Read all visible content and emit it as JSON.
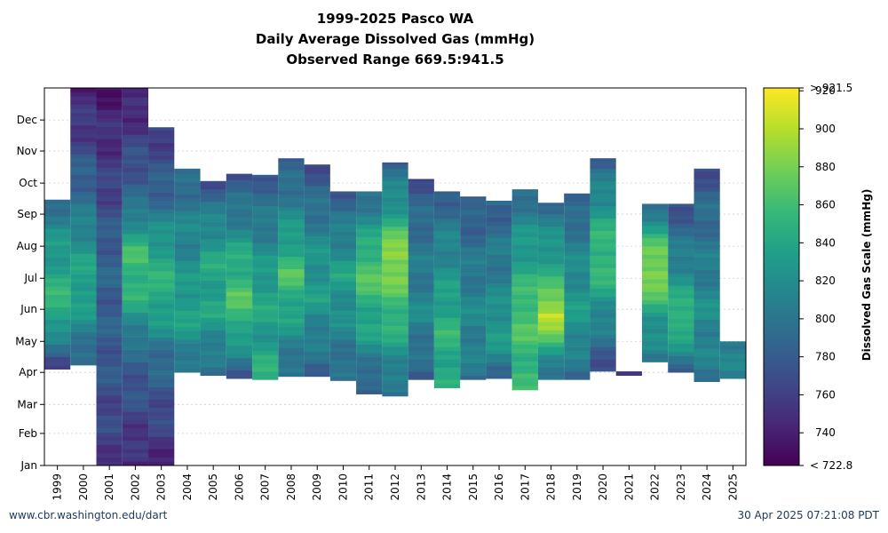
{
  "chart_data": {
    "type": "heatmap",
    "title_lines": [
      "1999-2025 Pasco WA",
      "Daily Average Dissolved Gas (mmHg)",
      "Observed Range 669.5:941.5"
    ],
    "y_ticks": [
      "Jan",
      "Feb",
      "Mar",
      "Apr",
      "May",
      "Jun",
      "Jul",
      "Aug",
      "Sep",
      "Oct",
      "Nov",
      "Dec"
    ],
    "ylim_day_of_year": [
      1,
      366
    ],
    "years": [
      1999,
      2000,
      2001,
      2002,
      2003,
      2004,
      2005,
      2006,
      2007,
      2008,
      2009,
      2010,
      2011,
      2012,
      2013,
      2014,
      2015,
      2016,
      2017,
      2018,
      2019,
      2020,
      2021,
      2022,
      2023,
      2024,
      2025
    ],
    "series": [
      {
        "year": 1999,
        "start": "2025-04-04",
        "end": "2025-09-14",
        "profile": [
          [
            0,
            765
          ],
          [
            0.35,
            855
          ],
          [
            0.55,
            840
          ],
          [
            0.8,
            820
          ],
          [
            1,
            790
          ]
        ]
      },
      {
        "year": 2000,
        "start": "2025-04-08",
        "end": "2025-12-31",
        "profile": [
          [
            0,
            785
          ],
          [
            0.25,
            840
          ],
          [
            0.4,
            830
          ],
          [
            0.55,
            800
          ],
          [
            0.7,
            780
          ],
          [
            0.85,
            755
          ],
          [
            1,
            745
          ]
        ]
      },
      {
        "year": 2001,
        "start": "2025-01-01",
        "end": "2025-12-31",
        "profile": [
          [
            0,
            755
          ],
          [
            0.3,
            780
          ],
          [
            0.55,
            785
          ],
          [
            0.75,
            760
          ],
          [
            1,
            735
          ]
        ]
      },
      {
        "year": 2002,
        "start": "2025-01-01",
        "end": "2025-12-31",
        "profile": [
          [
            0,
            745
          ],
          [
            0.3,
            790
          ],
          [
            0.45,
            850
          ],
          [
            0.55,
            860
          ],
          [
            0.7,
            790
          ],
          [
            1,
            735
          ]
        ]
      },
      {
        "year": 2003,
        "start": "2025-01-01",
        "end": "2025-11-23",
        "profile": [
          [
            0,
            745
          ],
          [
            0.3,
            790
          ],
          [
            0.5,
            850
          ],
          [
            0.62,
            840
          ],
          [
            0.8,
            785
          ],
          [
            1,
            755
          ]
        ]
      },
      {
        "year": 2004,
        "start": "2025-04-01",
        "end": "2025-10-14",
        "profile": [
          [
            0,
            800
          ],
          [
            0.3,
            840
          ],
          [
            0.5,
            820
          ],
          [
            0.75,
            810
          ],
          [
            1,
            785
          ]
        ]
      },
      {
        "year": 2005,
        "start": "2025-03-29",
        "end": "2025-10-02",
        "profile": [
          [
            0,
            790
          ],
          [
            0.3,
            835
          ],
          [
            0.55,
            840
          ],
          [
            0.75,
            820
          ],
          [
            1,
            770
          ]
        ]
      },
      {
        "year": 2006,
        "start": "2025-03-26",
        "end": "2025-10-09",
        "profile": [
          [
            0,
            780
          ],
          [
            0.25,
            850
          ],
          [
            0.4,
            865
          ],
          [
            0.6,
            840
          ],
          [
            0.8,
            800
          ],
          [
            1,
            775
          ]
        ]
      },
      {
        "year": 2007,
        "start": "2025-03-25",
        "end": "2025-10-08",
        "profile": [
          [
            0,
            850
          ],
          [
            0.2,
            830
          ],
          [
            0.4,
            840
          ],
          [
            0.6,
            820
          ],
          [
            1,
            780
          ]
        ]
      },
      {
        "year": 2008,
        "start": "2025-03-28",
        "end": "2025-10-24",
        "profile": [
          [
            0,
            790
          ],
          [
            0.3,
            840
          ],
          [
            0.45,
            865
          ],
          [
            0.65,
            830
          ],
          [
            1,
            775
          ]
        ]
      },
      {
        "year": 2009,
        "start": "2025-03-28",
        "end": "2025-10-18",
        "profile": [
          [
            0,
            785
          ],
          [
            0.35,
            830
          ],
          [
            0.55,
            825
          ],
          [
            0.75,
            800
          ],
          [
            1,
            770
          ]
        ]
      },
      {
        "year": 2010,
        "start": "2025-03-24",
        "end": "2025-09-22",
        "profile": [
          [
            0,
            790
          ],
          [
            0.3,
            815
          ],
          [
            0.55,
            835
          ],
          [
            0.75,
            810
          ],
          [
            1,
            780
          ]
        ]
      },
      {
        "year": 2011,
        "start": "2025-03-11",
        "end": "2025-09-22",
        "profile": [
          [
            0,
            775
          ],
          [
            0.3,
            835
          ],
          [
            0.45,
            850
          ],
          [
            0.6,
            870
          ],
          [
            0.8,
            830
          ],
          [
            1,
            790
          ]
        ]
      },
      {
        "year": 2012,
        "start": "2025-03-09",
        "end": "2025-10-20",
        "profile": [
          [
            0,
            790
          ],
          [
            0.3,
            850
          ],
          [
            0.5,
            875
          ],
          [
            0.6,
            895
          ],
          [
            0.75,
            840
          ],
          [
            1,
            785
          ]
        ]
      },
      {
        "year": 2013,
        "start": "2025-03-25",
        "end": "2025-10-04",
        "profile": [
          [
            0,
            780
          ],
          [
            0.3,
            815
          ],
          [
            0.5,
            805
          ],
          [
            0.75,
            795
          ],
          [
            1,
            770
          ]
        ]
      },
      {
        "year": 2014,
        "start": "2025-03-17",
        "end": "2025-09-22",
        "profile": [
          [
            0,
            840
          ],
          [
            0.3,
            850
          ],
          [
            0.5,
            830
          ],
          [
            0.75,
            810
          ],
          [
            1,
            780
          ]
        ]
      },
      {
        "year": 2015,
        "start": "2025-03-25",
        "end": "2025-09-17",
        "profile": [
          [
            0,
            800
          ],
          [
            0.3,
            815
          ],
          [
            0.55,
            805
          ],
          [
            0.8,
            790
          ],
          [
            1,
            775
          ]
        ]
      },
      {
        "year": 2016,
        "start": "2025-03-26",
        "end": "2025-09-13",
        "profile": [
          [
            0,
            790
          ],
          [
            0.25,
            835
          ],
          [
            0.5,
            810
          ],
          [
            0.75,
            800
          ],
          [
            1,
            780
          ]
        ]
      },
      {
        "year": 2017,
        "start": "2025-03-15",
        "end": "2025-09-24",
        "profile": [
          [
            0,
            850
          ],
          [
            0.25,
            860
          ],
          [
            0.4,
            865
          ],
          [
            0.6,
            840
          ],
          [
            0.8,
            820
          ],
          [
            1,
            790
          ]
        ]
      },
      {
        "year": 2018,
        "start": "2025-03-25",
        "end": "2025-09-11",
        "profile": [
          [
            0,
            790
          ],
          [
            0.25,
            870
          ],
          [
            0.35,
            910
          ],
          [
            0.55,
            850
          ],
          [
            0.8,
            820
          ],
          [
            1,
            790
          ]
        ]
      },
      {
        "year": 2019,
        "start": "2025-03-25",
        "end": "2025-09-20",
        "profile": [
          [
            0,
            790
          ],
          [
            0.3,
            830
          ],
          [
            0.55,
            820
          ],
          [
            0.8,
            800
          ],
          [
            1,
            775
          ]
        ]
      },
      {
        "year": 2020,
        "start": "2025-04-02",
        "end": "2025-10-24",
        "profile": [
          [
            0,
            770
          ],
          [
            0.3,
            825
          ],
          [
            0.5,
            860
          ],
          [
            0.7,
            840
          ],
          [
            1,
            780
          ]
        ]
      },
      {
        "year": 2021,
        "start": "2025-03-29",
        "end": "2025-04-01",
        "profile": [
          [
            0,
            755
          ],
          [
            1,
            830
          ]
        ]
      },
      {
        "year": 2022,
        "start": "2025-04-11",
        "end": "2025-09-10",
        "profile": [
          [
            0,
            800
          ],
          [
            0.25,
            830
          ],
          [
            0.4,
            860
          ],
          [
            0.55,
            890
          ],
          [
            0.7,
            870
          ],
          [
            1,
            790
          ]
        ]
      },
      {
        "year": 2023,
        "start": "2025-04-01",
        "end": "2025-09-10",
        "profile": [
          [
            0,
            790
          ],
          [
            0.3,
            860
          ],
          [
            0.5,
            830
          ],
          [
            0.75,
            800
          ],
          [
            1,
            770
          ]
        ]
      },
      {
        "year": 2024,
        "start": "2025-03-23",
        "end": "2025-10-14",
        "profile": [
          [
            0,
            800
          ],
          [
            0.3,
            820
          ],
          [
            0.55,
            805
          ],
          [
            0.8,
            790
          ],
          [
            1,
            770
          ]
        ]
      },
      {
        "year": 2025,
        "start": "2025-03-26",
        "end": "2025-04-30",
        "profile": [
          [
            0,
            800
          ],
          [
            0.5,
            815
          ],
          [
            1,
            810
          ]
        ]
      }
    ],
    "colorbar": {
      "label": "Dissolved Gas Scale (mmHg)",
      "range": [
        722.8,
        921.5
      ],
      "ticks": [
        920,
        900,
        880,
        860,
        840,
        820,
        800,
        780,
        760,
        740
      ],
      "top_label": "> 921.5",
      "bottom_label": "< 722.8",
      "colormap": "viridis"
    },
    "grid": true
  },
  "footer": {
    "left": "www.cbr.washington.edu/dart",
    "right": "30 Apr 2025 07:21:08 PDT"
  }
}
